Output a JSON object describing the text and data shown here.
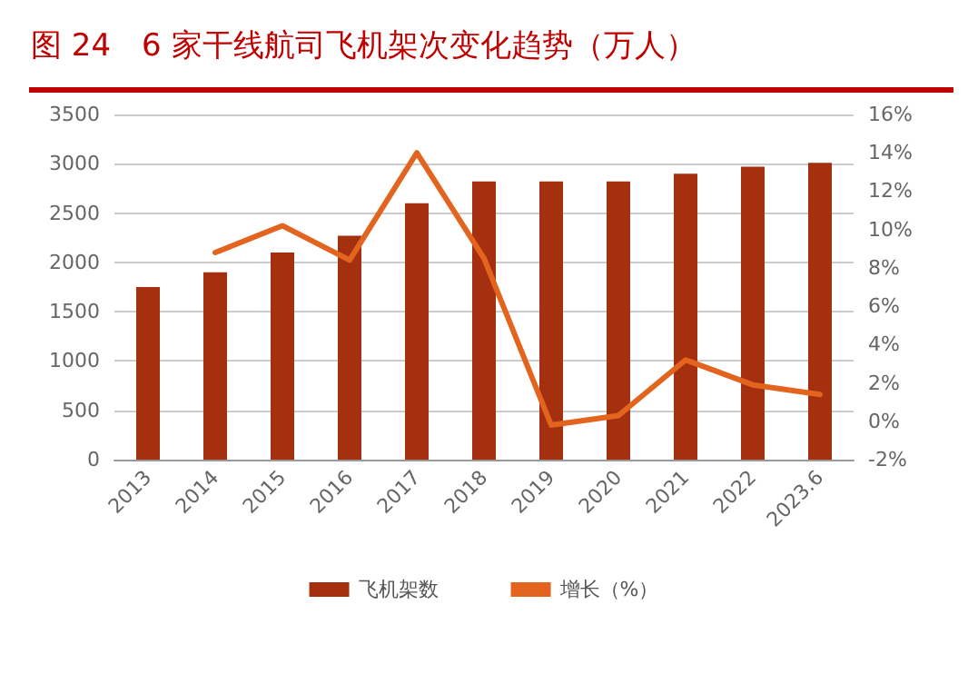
{
  "chart_data": {
    "type": "bar",
    "title": "图 24　6 家干线航司飞机架次变化趋势（万人）",
    "categories": [
      "2013",
      "2014",
      "2015",
      "2016",
      "2017",
      "2018",
      "2019",
      "2020",
      "2021",
      "2022",
      "2023.6"
    ],
    "series": [
      {
        "name": "飞机架数",
        "color": "#a5300f",
        "values": [
          1750,
          1900,
          2100,
          2270,
          2600,
          2820,
          2820,
          2820,
          2900,
          2970,
          3010
        ]
      },
      {
        "name": "增长（%）",
        "type": "line",
        "axis": "y2",
        "color": "#e2641e",
        "values": [
          null,
          8.8,
          10.2,
          8.4,
          14.0,
          8.5,
          -0.2,
          0.3,
          3.2,
          1.9,
          1.4
        ]
      }
    ],
    "ylim": [
      0,
      3500
    ],
    "yticks": [
      0,
      500,
      1000,
      1500,
      2000,
      2500,
      3000,
      3500
    ],
    "y2lim": [
      -2,
      16
    ],
    "y2ticks": [
      {
        "value": -2,
        "label": "-2%"
      },
      {
        "value": 0,
        "label": "0%"
      },
      {
        "value": 2,
        "label": "2%"
      },
      {
        "value": 4,
        "label": "4%"
      },
      {
        "value": 6,
        "label": "6%"
      },
      {
        "value": 8,
        "label": "8%"
      },
      {
        "value": 10,
        "label": "10%"
      },
      {
        "value": 12,
        "label": "12%"
      },
      {
        "value": 14,
        "label": "14%"
      },
      {
        "value": 16,
        "label": "16%"
      }
    ],
    "grid": "y",
    "legend": "bottom",
    "marker": "none",
    "line_style": "solid"
  }
}
